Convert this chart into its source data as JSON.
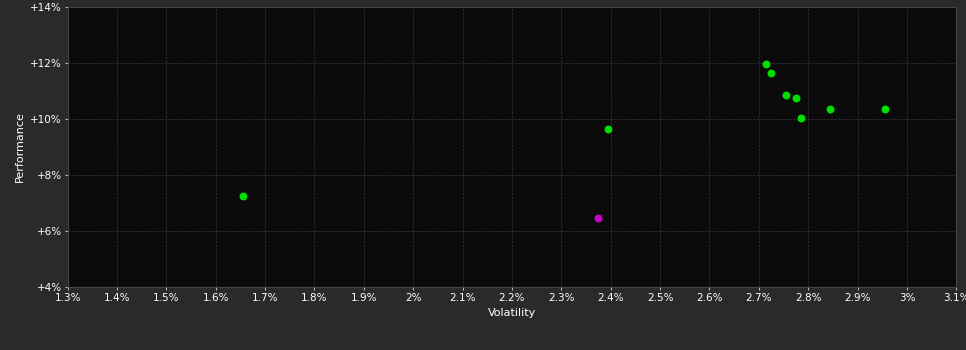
{
  "background_color": "#2a2a2a",
  "plot_bg_color": "#0a0a0a",
  "grid_color": "#383838",
  "xlabel": "Volatility",
  "ylabel": "Performance",
  "xlim": [
    0.013,
    0.031
  ],
  "ylim": [
    0.04,
    0.14
  ],
  "xtick_labels": [
    "1.3%",
    "1.4%",
    "1.5%",
    "1.6%",
    "1.7%",
    "1.8%",
    "1.9%",
    "2%",
    "2.1%",
    "2.2%",
    "2.3%",
    "2.4%",
    "2.5%",
    "2.6%",
    "2.7%",
    "2.8%",
    "2.9%",
    "3%",
    "3.1%"
  ],
  "xtick_vals": [
    0.013,
    0.014,
    0.015,
    0.016,
    0.017,
    0.018,
    0.019,
    0.02,
    0.021,
    0.022,
    0.023,
    0.024,
    0.025,
    0.026,
    0.027,
    0.028,
    0.029,
    0.03,
    0.031
  ],
  "ytick_labels": [
    "+4%",
    "+6%",
    "+8%",
    "+10%",
    "+12%",
    "+14%"
  ],
  "ytick_vals": [
    0.04,
    0.06,
    0.08,
    0.1,
    0.12,
    0.14
  ],
  "green_points": [
    [
      0.01655,
      0.0725
    ],
    [
      0.02395,
      0.0965
    ],
    [
      0.02715,
      0.1195
    ],
    [
      0.02725,
      0.1165
    ],
    [
      0.02755,
      0.1085
    ],
    [
      0.02775,
      0.1075
    ],
    [
      0.02785,
      0.1005
    ],
    [
      0.02845,
      0.1035
    ],
    [
      0.02955,
      0.1035
    ]
  ],
  "magenta_points": [
    [
      0.02375,
      0.0645
    ]
  ],
  "point_size": 22,
  "label_fontsize": 8,
  "tick_fontsize": 7.5
}
